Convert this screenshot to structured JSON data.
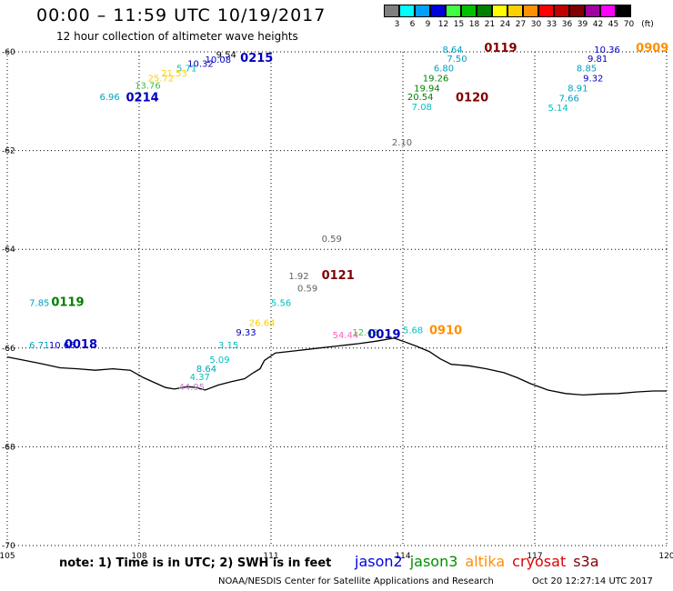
{
  "header": {
    "title": "00:00 – 11:59 UTC 10/19/2017",
    "subtitle": "12 hour collection of altimeter wave heights"
  },
  "legend": {
    "unit": "(ft)",
    "bins": [
      {
        "label": "3",
        "color": "#7f7f7f"
      },
      {
        "label": "6",
        "color": "#00ffff"
      },
      {
        "label": "9",
        "color": "#00a0ff"
      },
      {
        "label": "12",
        "color": "#0000e0"
      },
      {
        "label": "15",
        "color": "#40ff40"
      },
      {
        "label": "18",
        "color": "#00c000"
      },
      {
        "label": "21",
        "color": "#008000"
      },
      {
        "label": "24",
        "color": "#ffff00"
      },
      {
        "label": "27",
        "color": "#ffd000"
      },
      {
        "label": "30",
        "color": "#ff9000"
      },
      {
        "label": "33",
        "color": "#ff0000"
      },
      {
        "label": "36",
        "color": "#c00000"
      },
      {
        "label": "39",
        "color": "#800000"
      },
      {
        "label": "42",
        "color": "#a000a0"
      },
      {
        "label": "45",
        "color": "#ff00ff"
      },
      {
        "label": "70",
        "color": "#000000"
      }
    ]
  },
  "map": {
    "lon_range": [
      105,
      120
    ],
    "lat_range": [
      -70,
      -60
    ],
    "lon_ticks": [
      "105",
      "108",
      "111",
      "114",
      "117",
      "120"
    ],
    "lat_ticks": [
      "-60",
      "-62",
      "-64",
      "-66",
      "-68",
      "-70"
    ],
    "grid": true,
    "grid_style": "dotted",
    "coastline": [
      [
        105.0,
        -66.18
      ],
      [
        105.4,
        -66.25
      ],
      [
        105.8,
        -66.32
      ],
      [
        106.2,
        -66.4
      ],
      [
        106.6,
        -66.42
      ],
      [
        107.0,
        -66.45
      ],
      [
        107.4,
        -66.42
      ],
      [
        107.8,
        -66.45
      ],
      [
        108.1,
        -66.6
      ],
      [
        108.4,
        -66.72
      ],
      [
        108.6,
        -66.8
      ],
      [
        108.8,
        -66.83
      ],
      [
        109.1,
        -66.78
      ],
      [
        109.3,
        -66.8
      ],
      [
        109.5,
        -66.85
      ],
      [
        109.8,
        -66.75
      ],
      [
        110.1,
        -66.68
      ],
      [
        110.4,
        -66.62
      ],
      [
        110.6,
        -66.5
      ],
      [
        110.75,
        -66.42
      ],
      [
        110.85,
        -66.25
      ],
      [
        111.1,
        -66.1
      ],
      [
        111.5,
        -66.06
      ],
      [
        112.0,
        -66.01
      ],
      [
        112.5,
        -65.96
      ],
      [
        113.0,
        -65.91
      ],
      [
        113.4,
        -65.86
      ],
      [
        113.8,
        -65.8
      ],
      [
        114.0,
        -65.86
      ],
      [
        114.3,
        -65.96
      ],
      [
        114.6,
        -66.07
      ],
      [
        114.85,
        -66.22
      ],
      [
        115.1,
        -66.33
      ],
      [
        115.5,
        -66.36
      ],
      [
        115.9,
        -66.42
      ],
      [
        116.3,
        -66.5
      ],
      [
        116.6,
        -66.6
      ],
      [
        116.9,
        -66.72
      ],
      [
        117.3,
        -66.85
      ],
      [
        117.7,
        -66.92
      ],
      [
        118.1,
        -66.95
      ],
      [
        118.5,
        -66.93
      ],
      [
        118.9,
        -66.92
      ],
      [
        119.3,
        -66.89
      ],
      [
        119.7,
        -66.87
      ],
      [
        120.0,
        -66.87
      ]
    ],
    "pass_labels": [
      {
        "text": "0215",
        "lon": 110.3,
        "lat": -60.2,
        "color": "#0000c0"
      },
      {
        "text": "0214",
        "lon": 107.7,
        "lat": -61.0,
        "color": "#0000c0"
      },
      {
        "text": "0119",
        "lon": 115.85,
        "lat": -60.0,
        "color": "#800000"
      },
      {
        "text": "0120",
        "lon": 115.2,
        "lat": -61.0,
        "color": "#800000"
      },
      {
        "text": "0909",
        "lon": 119.3,
        "lat": -60.0,
        "color": "#ff9000"
      },
      {
        "text": "0121",
        "lon": 112.15,
        "lat": -64.6,
        "color": "#800000"
      },
      {
        "text": "0119",
        "lon": 106.0,
        "lat": -65.15,
        "color": "#008000"
      },
      {
        "text": "0018",
        "lon": 106.3,
        "lat": -66.0,
        "color": "#0000c0"
      },
      {
        "text": "0019",
        "lon": 113.2,
        "lat": -65.8,
        "color": "#0000c0"
      },
      {
        "text": "0910",
        "lon": 114.6,
        "lat": -65.72,
        "color": "#ff9000"
      }
    ],
    "swh_points": [
      {
        "text": "9.54",
        "lon": 109.75,
        "lat": -60.12,
        "color": "#000000"
      },
      {
        "text": "10.08",
        "lon": 109.5,
        "lat": -60.22,
        "color": "#0000c0"
      },
      {
        "text": "10.32",
        "lon": 109.1,
        "lat": -60.3,
        "color": "#0000c0"
      },
      {
        "text": "5.71",
        "lon": 108.85,
        "lat": -60.4,
        "color": "#00c0c0"
      },
      {
        "text": "21.53",
        "lon": 108.5,
        "lat": -60.5,
        "color": "#ffd000"
      },
      {
        "text": "25.72",
        "lon": 108.2,
        "lat": -60.6,
        "color": "#ffd000"
      },
      {
        "text": "13.76",
        "lon": 107.9,
        "lat": -60.75,
        "color": "#40c040"
      },
      {
        "text": "6.96",
        "lon": 107.1,
        "lat": -60.98,
        "color": "#00a0c0"
      },
      {
        "text": "8.64",
        "lon": 114.9,
        "lat": -60.02,
        "color": "#00a0c0"
      },
      {
        "text": "7.50",
        "lon": 115.0,
        "lat": -60.2,
        "color": "#00a0c0"
      },
      {
        "text": "6.80",
        "lon": 114.7,
        "lat": -60.4,
        "color": "#00a0c0"
      },
      {
        "text": "19.26",
        "lon": 114.45,
        "lat": -60.6,
        "color": "#008000"
      },
      {
        "text": "19.94",
        "lon": 114.25,
        "lat": -60.8,
        "color": "#008000"
      },
      {
        "text": "20.54",
        "lon": 114.1,
        "lat": -60.98,
        "color": "#008000"
      },
      {
        "text": "7.08",
        "lon": 114.2,
        "lat": -61.18,
        "color": "#00c0c0"
      },
      {
        "text": "2.10",
        "lon": 113.75,
        "lat": -61.9,
        "color": "#606060"
      },
      {
        "text": "10.36",
        "lon": 118.35,
        "lat": -60.02,
        "color": "#0000c0"
      },
      {
        "text": "9.81",
        "lon": 118.2,
        "lat": -60.2,
        "color": "#0000c0"
      },
      {
        "text": "8.85",
        "lon": 117.95,
        "lat": -60.4,
        "color": "#00a0c0"
      },
      {
        "text": "9.32",
        "lon": 118.1,
        "lat": -60.6,
        "color": "#0000c0"
      },
      {
        "text": "8.91",
        "lon": 117.75,
        "lat": -60.8,
        "color": "#00a0c0"
      },
      {
        "text": "7.66",
        "lon": 117.55,
        "lat": -61.0,
        "color": "#00a0c0"
      },
      {
        "text": "5.14",
        "lon": 117.3,
        "lat": -61.2,
        "color": "#00c0c0"
      },
      {
        "text": "0.59",
        "lon": 112.15,
        "lat": -63.85,
        "color": "#606060"
      },
      {
        "text": "1.92",
        "lon": 111.4,
        "lat": -64.6,
        "color": "#606060"
      },
      {
        "text": "0.59",
        "lon": 111.6,
        "lat": -64.85,
        "color": "#606060"
      },
      {
        "text": "5.56",
        "lon": 111.0,
        "lat": -65.15,
        "color": "#00c0c0"
      },
      {
        "text": "26.64",
        "lon": 110.5,
        "lat": -65.55,
        "color": "#ffd000"
      },
      {
        "text": "9.33",
        "lon": 110.2,
        "lat": -65.75,
        "color": "#0000c0"
      },
      {
        "text": "3.15",
        "lon": 109.8,
        "lat": -66.0,
        "color": "#00c0c0"
      },
      {
        "text": "5.09",
        "lon": 109.6,
        "lat": -66.3,
        "color": "#00c0c0"
      },
      {
        "text": "8.64",
        "lon": 109.3,
        "lat": -66.48,
        "color": "#00a0c0"
      },
      {
        "text": "4.37",
        "lon": 109.15,
        "lat": -66.65,
        "color": "#00c0c0"
      },
      {
        "text": "44.95",
        "lon": 108.9,
        "lat": -66.85,
        "color": "#c080c0"
      },
      {
        "text": "7.85",
        "lon": 105.5,
        "lat": -65.15,
        "color": "#00a0c0"
      },
      {
        "text": "6.71",
        "lon": 105.5,
        "lat": -66.0,
        "color": "#00a0c0"
      },
      {
        "text": "10.66",
        "lon": 105.95,
        "lat": -66.0,
        "color": "#0000c0"
      },
      {
        "text": "54.44",
        "lon": 112.4,
        "lat": -65.8,
        "color": "#ff60c0"
      },
      {
        "text": "12.48",
        "lon": 112.85,
        "lat": -65.75,
        "color": "#40c040"
      },
      {
        "text": "5.68",
        "lon": 114.0,
        "lat": -65.7,
        "color": "#00c0c0"
      }
    ]
  },
  "footer": {
    "note": "note:  1) Time is in UTC;  2) SWH is in feet",
    "satellites": [
      {
        "name": "jason2",
        "color": "#0000e0"
      },
      {
        "name": "jason3",
        "color": "#009000"
      },
      {
        "name": "altika",
        "color": "#ff9000"
      },
      {
        "name": "cryosat",
        "color": "#e00000"
      },
      {
        "name": "s3a",
        "color": "#800000"
      }
    ],
    "credit": "NOAA/NESDIS Center for Satellite Applications and Research",
    "timestamp": "Oct 20 12:27:14 UTC 2017"
  }
}
